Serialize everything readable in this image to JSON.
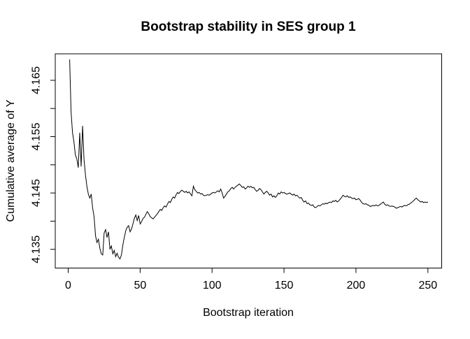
{
  "window": {
    "background": "#ffffff",
    "foreground": "#000000"
  },
  "chart_data": {
    "type": "line",
    "title": "Bootstrap stability in SES group 1",
    "xlabel": "Bootstrap iteration",
    "ylabel": "Cumulative average of Y",
    "grid": false,
    "legend": "none",
    "line_color": "#000000",
    "background": "#ffffff",
    "x_axis": {
      "ticks": [
        0,
        50,
        100,
        150,
        200,
        250
      ],
      "tick_labels": [
        "0",
        "50",
        "100",
        "150",
        "200",
        "250"
      ]
    },
    "y_axis": {
      "ticks": [
        4.135,
        4.14,
        4.145,
        4.15,
        4.155,
        4.16,
        4.165
      ],
      "labeled_ticks": [
        4.135,
        4.145,
        4.155,
        4.165
      ],
      "tick_labels": [
        "4.135",
        "4.145",
        "4.155",
        "4.165"
      ]
    },
    "xlim": [
      -9,
      259.6
    ],
    "ylim": [
      4.1317,
      4.1697
    ],
    "series": [
      {
        "name": "Cumulative average of Y",
        "x": {
          "start": 1,
          "step": 1,
          "count": 250
        },
        "y": [
          4.1687,
          4.1594,
          4.1557,
          4.1541,
          4.1517,
          4.1511,
          4.1495,
          4.1557,
          4.1497,
          4.1569,
          4.151,
          4.1482,
          4.1462,
          4.1448,
          4.1441,
          4.1448,
          4.1423,
          4.1408,
          4.1374,
          4.1362,
          4.1368,
          4.1352,
          4.1342,
          4.134,
          4.1379,
          4.1385,
          4.1371,
          4.1381,
          4.135,
          4.1356,
          4.1342,
          4.1348,
          4.1337,
          4.1343,
          4.1336,
          4.1333,
          4.134,
          4.1358,
          4.1371,
          4.1383,
          4.1389,
          4.1392,
          4.1381,
          4.1386,
          4.1395,
          4.1405,
          4.1411,
          4.1401,
          4.141,
          4.1395,
          4.1399,
          4.1405,
          4.1407,
          4.1412,
          4.1417,
          4.1413,
          4.1408,
          4.1406,
          4.1404,
          4.1407,
          4.141,
          4.1413,
          4.1417,
          4.1421,
          4.1419,
          4.1424,
          4.1427,
          4.1425,
          4.143,
          4.1435,
          4.1433,
          4.1439,
          4.1443,
          4.1441,
          4.1447,
          4.1451,
          4.1449,
          4.1453,
          4.1455,
          4.1453,
          4.1451,
          4.1453,
          4.145,
          4.1452,
          4.1448,
          4.1445,
          4.1462,
          4.1456,
          4.1453,
          4.145,
          4.1451,
          4.1448,
          4.1449,
          4.1446,
          4.1445,
          4.1446,
          4.1447,
          4.1446,
          4.1448,
          4.145,
          4.1451,
          4.145,
          4.1452,
          4.1454,
          4.1452,
          4.1457,
          4.145,
          4.1441,
          4.1444,
          4.1448,
          4.1452,
          4.1454,
          4.1458,
          4.146,
          4.1457,
          4.146,
          4.1462,
          4.1464,
          4.1466,
          4.1463,
          4.146,
          4.1461,
          4.1457,
          4.1459,
          4.1462,
          4.146,
          4.1462,
          4.1459,
          4.146,
          4.1456,
          4.1453,
          4.1455,
          4.1458,
          4.1456,
          4.1452,
          4.1448,
          4.1451,
          4.1453,
          4.145,
          4.1446,
          4.1448,
          4.1443,
          4.1445,
          4.1442,
          4.1445,
          4.145,
          4.1448,
          4.1452,
          4.145,
          4.1451,
          4.1449,
          4.1448,
          4.1449,
          4.145,
          4.1448,
          4.1446,
          4.1448,
          4.1445,
          4.1446,
          4.1443,
          4.1441,
          4.1442,
          4.1437,
          4.1434,
          4.1436,
          4.1431,
          4.1432,
          4.1429,
          4.1428,
          4.1429,
          4.1425,
          4.1424,
          4.1426,
          4.1428,
          4.1427,
          4.1429,
          4.1431,
          4.143,
          4.1432,
          4.1431,
          4.1433,
          4.1434,
          4.1433,
          4.1436,
          4.1435,
          4.1437,
          4.1434,
          4.1436,
          4.1439,
          4.1442,
          4.1446,
          4.1444,
          4.1443,
          4.1445,
          4.1442,
          4.1443,
          4.1441,
          4.144,
          4.1441,
          4.1438,
          4.1439,
          4.144,
          4.1437,
          4.1433,
          4.1431,
          4.143,
          4.1431,
          4.1429,
          4.1428,
          4.1426,
          4.1427,
          4.1428,
          4.1427,
          4.1429,
          4.1427,
          4.1428,
          4.143,
          4.1432,
          4.1434,
          4.143,
          4.1428,
          4.1429,
          4.1427,
          4.1426,
          4.1427,
          4.1426,
          4.1425,
          4.1423,
          4.1424,
          4.1425,
          4.1426,
          4.1425,
          4.1427,
          4.1428,
          4.1427,
          4.1429,
          4.143,
          4.1432,
          4.1434,
          4.1436,
          4.1439,
          4.1441,
          4.1438,
          4.1436,
          4.1434,
          4.1435,
          4.1433,
          4.1434,
          4.1433,
          4.1434
        ]
      }
    ]
  }
}
